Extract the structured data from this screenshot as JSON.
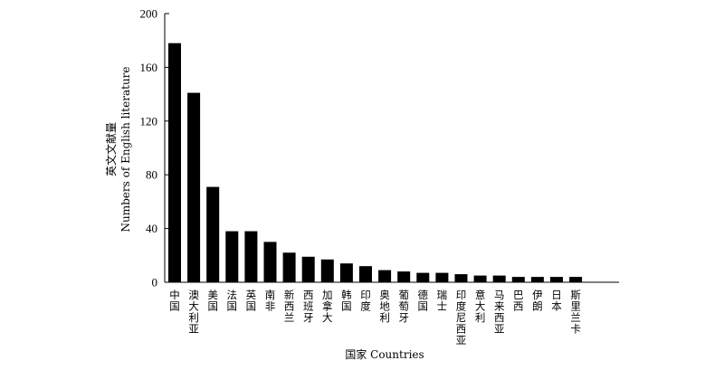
{
  "chart_data": {
    "type": "bar",
    "categories": [
      "中国",
      "澳大利亚",
      "美国",
      "法国",
      "英国",
      "南非",
      "新西兰",
      "西班牙",
      "加拿大",
      "韩国",
      "印度",
      "奥地利",
      "葡萄牙",
      "德国",
      "瑞士",
      "印度尼西亚",
      "意大利",
      "马来西亚",
      "巴西",
      "伊朗",
      "日本",
      "斯里兰卡"
    ],
    "values": [
      178,
      141,
      71,
      38,
      38,
      30,
      22,
      19,
      17,
      14,
      12,
      9,
      8,
      7,
      7,
      6,
      5,
      5,
      4,
      4,
      4,
      4
    ],
    "title": "",
    "xlabel": "国家 Countries",
    "ylabel_cn": "英文文献量",
    "ylabel_en": "Numbers of English literature",
    "ylim": [
      0,
      200
    ],
    "yticks": [
      0,
      40,
      80,
      120,
      160,
      200
    ],
    "bar_color": "#000000",
    "grid": false,
    "legend": "none"
  }
}
